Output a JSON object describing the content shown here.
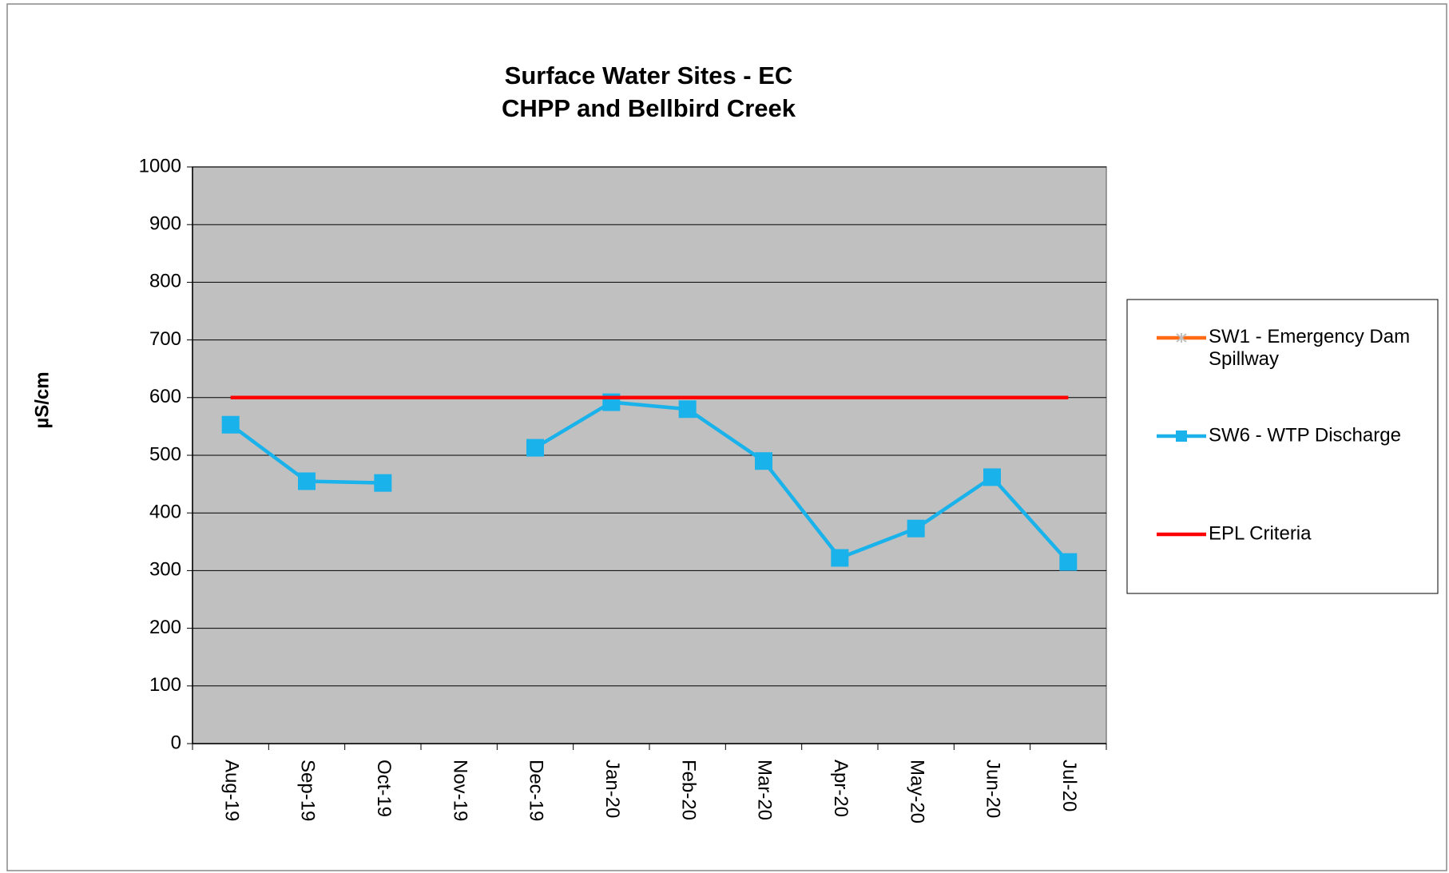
{
  "chart_data": {
    "type": "line",
    "title": "Surface Water Sites - EC",
    "subtitle": "CHPP and Bellbird Creek",
    "y_label": "µS/cm",
    "categories": [
      "Aug-19",
      "Sep-19",
      "Oct-19",
      "Nov-19",
      "Dec-19",
      "Jan-20",
      "Feb-20",
      "Mar-20",
      "Apr-20",
      "May-20",
      "Jun-20",
      "Jul-20"
    ],
    "series": [
      {
        "name": "SW1 - Emergency Dam Spillway",
        "color": "#ff6a13",
        "marker": "star",
        "values": [
          null,
          null,
          null,
          null,
          null,
          null,
          null,
          null,
          null,
          null,
          null,
          null
        ]
      },
      {
        "name": "SW6 - WTP Discharge",
        "color": "#1ab2ea",
        "marker": "square",
        "values": [
          553,
          455,
          452,
          null,
          513,
          592,
          580,
          490,
          322,
          373,
          462,
          315
        ]
      },
      {
        "name": "EPL Criteria",
        "color": "#ff0000",
        "marker": "none",
        "values": [
          600,
          600,
          600,
          600,
          600,
          600,
          600,
          600,
          600,
          600,
          600,
          600
        ]
      }
    ],
    "ylim": [
      0,
      1000
    ],
    "yticks": [
      0,
      100,
      200,
      300,
      400,
      500,
      600,
      700,
      800,
      900,
      1000
    ],
    "grid": true,
    "plot_background": "#c0c0c0",
    "legend": "right"
  }
}
